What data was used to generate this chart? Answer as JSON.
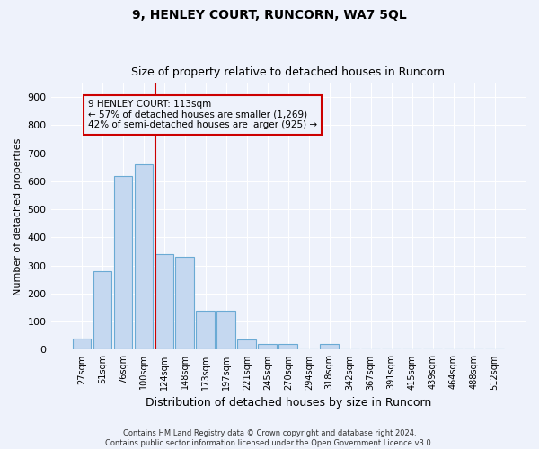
{
  "title1": "9, HENLEY COURT, RUNCORN, WA7 5QL",
  "title2": "Size of property relative to detached houses in Runcorn",
  "xlabel": "Distribution of detached houses by size in Runcorn",
  "ylabel": "Number of detached properties",
  "footnote": "Contains HM Land Registry data © Crown copyright and database right 2024.\nContains public sector information licensed under the Open Government Licence v3.0.",
  "bar_labels": [
    "27sqm",
    "51sqm",
    "76sqm",
    "100sqm",
    "124sqm",
    "148sqm",
    "173sqm",
    "197sqm",
    "221sqm",
    "245sqm",
    "270sqm",
    "294sqm",
    "318sqm",
    "342sqm",
    "367sqm",
    "391sqm",
    "415sqm",
    "439sqm",
    "464sqm",
    "488sqm",
    "512sqm"
  ],
  "bar_values": [
    40,
    280,
    620,
    660,
    340,
    330,
    140,
    140,
    35,
    20,
    20,
    0,
    20,
    0,
    0,
    0,
    0,
    0,
    0,
    0,
    0
  ],
  "bar_color": "#c5d8f0",
  "bar_edge_color": "#6aaad4",
  "vline_x": 3.55,
  "annotation_line1": "9 HENLEY COURT: 113sqm",
  "annotation_line2": "← 57% of detached houses are smaller (1,269)",
  "annotation_line3": "42% of semi-detached houses are larger (925) →",
  "vline_color": "#cc0000",
  "background_color": "#eef2fb",
  "grid_color": "#ffffff",
  "ylim": [
    0,
    950
  ],
  "yticks": [
    0,
    100,
    200,
    300,
    400,
    500,
    600,
    700,
    800,
    900
  ]
}
